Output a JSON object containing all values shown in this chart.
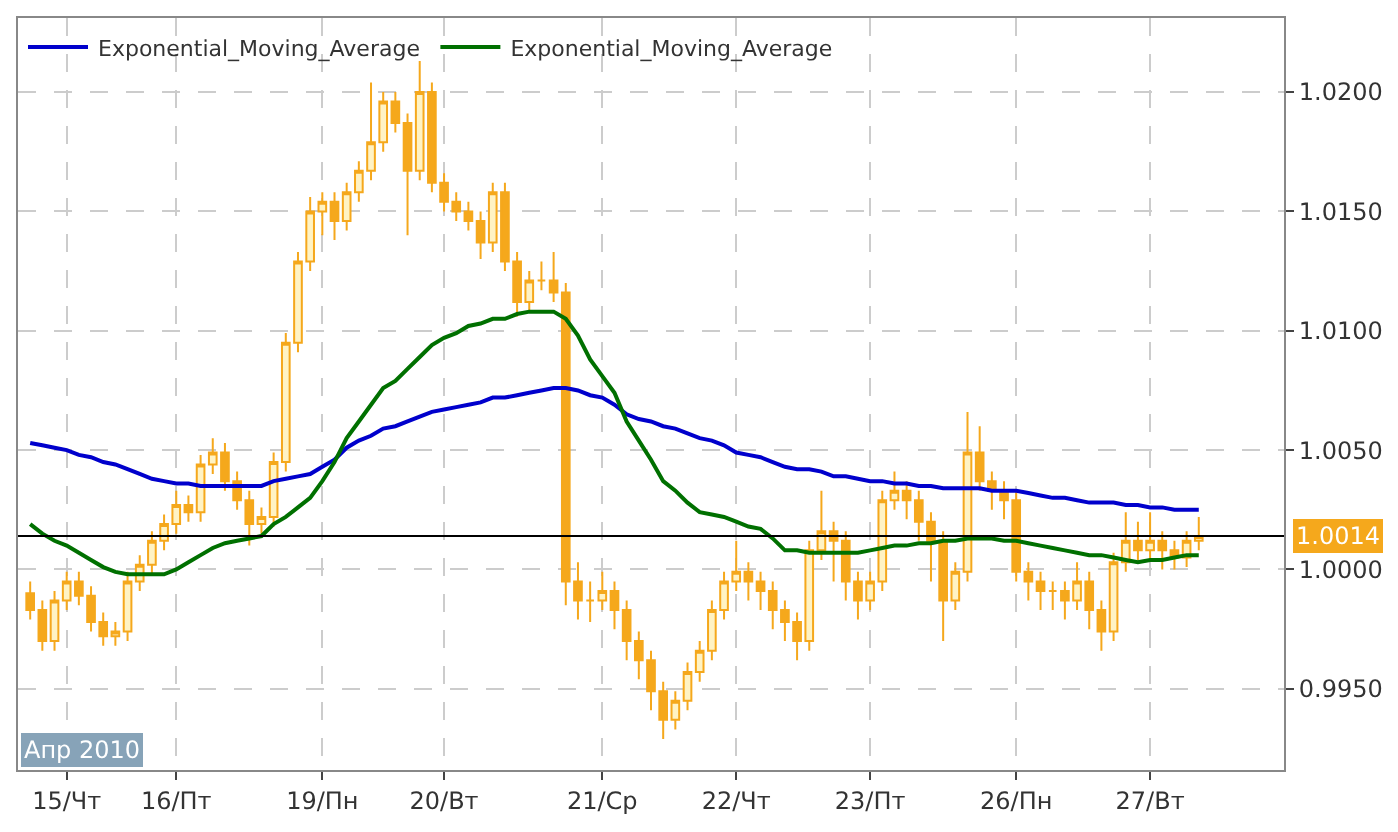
{
  "chart_data": {
    "type": "candlestick",
    "categories": [
      null,
      null,
      null,
      "15/Чт",
      null,
      null,
      null,
      null,
      null,
      null,
      null,
      null,
      "16/Пт",
      null,
      null,
      null,
      null,
      null,
      null,
      null,
      null,
      null,
      null,
      null,
      "19/Пн",
      null,
      null,
      null,
      null,
      null,
      null,
      null,
      null,
      null,
      "20/Вт",
      null,
      null,
      null,
      null,
      null,
      null,
      null,
      null,
      null,
      null,
      null,
      null,
      "21/Ср",
      null,
      null,
      null,
      null,
      null,
      null,
      null,
      null,
      null,
      null,
      "22/Чт",
      null,
      null,
      null,
      null,
      null,
      null,
      null,
      null,
      null,
      null,
      "23/Пт",
      null,
      null,
      null,
      null,
      null,
      null,
      null,
      null,
      null,
      null,
      null,
      "26/Пн",
      null,
      null,
      null,
      null,
      null,
      null,
      null,
      null,
      null,
      null,
      "27/Вт",
      null,
      null,
      null,
      null
    ],
    "series": [
      {
        "color": "#f5a81c",
        "ohlc": [
          [
            0.999,
            0.9995,
            0.9979,
            0.9983
          ],
          [
            0.9983,
            0.9987,
            0.9966,
            0.997
          ],
          [
            0.997,
            0.9991,
            0.9966,
            0.9987
          ],
          [
            0.9987,
            0.9999,
            0.9983,
            0.9995
          ],
          [
            0.9995,
            0.9999,
            0.9985,
            0.9989
          ],
          [
            0.9989,
            0.9993,
            0.9974,
            0.9978
          ],
          [
            0.9978,
            0.9982,
            0.9968,
            0.9972
          ],
          [
            0.9972,
            0.9978,
            0.9968,
            0.9974
          ],
          [
            0.9974,
            0.9999,
            0.997,
            0.9995
          ],
          [
            0.9995,
            1.0006,
            0.9991,
            1.0002
          ],
          [
            1.0002,
            1.0016,
            0.9998,
            1.0012
          ],
          [
            1.0012,
            1.0023,
            1.0008,
            1.0019
          ],
          [
            1.0019,
            1.0033,
            1.0015,
            1.0027
          ],
          [
            1.0027,
            1.0031,
            1.002,
            1.0024
          ],
          [
            1.0024,
            1.0048,
            1.002,
            1.0044
          ],
          [
            1.0044,
            1.0055,
            1.004,
            1.0049
          ],
          [
            1.0049,
            1.0053,
            1.0033,
            1.0037
          ],
          [
            1.0037,
            1.0041,
            1.0025,
            1.0029
          ],
          [
            1.0029,
            1.0033,
            1.001,
            1.0019
          ],
          [
            1.0019,
            1.0026,
            1.0015,
            1.0022
          ],
          [
            1.0022,
            1.0049,
            1.0018,
            1.0045
          ],
          [
            1.0045,
            1.0099,
            1.0041,
            1.0095
          ],
          [
            1.0095,
            1.0133,
            1.0091,
            1.0129
          ],
          [
            1.0129,
            1.0156,
            1.0125,
            1.015
          ],
          [
            1.015,
            1.0158,
            1.014,
            1.0154
          ],
          [
            1.0154,
            1.0158,
            1.0138,
            1.0146
          ],
          [
            1.0146,
            1.0162,
            1.0142,
            1.0158
          ],
          [
            1.0158,
            1.0171,
            1.0154,
            1.0167
          ],
          [
            1.0167,
            1.0204,
            1.0163,
            1.0179
          ],
          [
            1.0179,
            1.02,
            1.0175,
            1.0196
          ],
          [
            1.0196,
            1.02,
            1.0183,
            1.0187
          ],
          [
            1.0187,
            1.0191,
            1.014,
            1.0167
          ],
          [
            1.0167,
            1.0213,
            1.0163,
            1.02
          ],
          [
            1.02,
            1.0204,
            1.0158,
            1.0162
          ],
          [
            1.0162,
            1.0166,
            1.015,
            1.0154
          ],
          [
            1.0154,
            1.0158,
            1.0146,
            1.015
          ],
          [
            1.015,
            1.0154,
            1.0142,
            1.0146
          ],
          [
            1.0146,
            1.015,
            1.013,
            1.0137
          ],
          [
            1.0137,
            1.0162,
            1.0133,
            1.0158
          ],
          [
            1.0158,
            1.0162,
            1.0125,
            1.0129
          ],
          [
            1.0129,
            1.0133,
            1.0106,
            1.0112
          ],
          [
            1.0112,
            1.0125,
            1.0108,
            1.0121
          ],
          [
            1.0121,
            1.0129,
            1.0117,
            1.0121
          ],
          [
            1.0121,
            1.0133,
            1.0112,
            1.0116
          ],
          [
            1.0116,
            1.012,
            0.9985,
            0.9995
          ],
          [
            0.9995,
            1.0003,
            0.9979,
            0.9987
          ],
          [
            0.9987,
            0.9995,
            0.9978,
            0.9987
          ],
          [
            0.9987,
            0.9999,
            0.9983,
            0.9991
          ],
          [
            0.9991,
            0.9995,
            0.9975,
            0.9983
          ],
          [
            0.9983,
            0.9987,
            0.9962,
            0.997
          ],
          [
            0.997,
            0.9974,
            0.9954,
            0.9962
          ],
          [
            0.9962,
            0.9966,
            0.9941,
            0.9949
          ],
          [
            0.9949,
            0.9953,
            0.9929,
            0.9937
          ],
          [
            0.9937,
            0.9949,
            0.9933,
            0.9945
          ],
          [
            0.9945,
            0.9961,
            0.9941,
            0.9957
          ],
          [
            0.9957,
            0.997,
            0.9953,
            0.9966
          ],
          [
            0.9966,
            0.9987,
            0.9962,
            0.9983
          ],
          [
            0.9983,
            0.9999,
            0.9979,
            0.9995
          ],
          [
            0.9995,
            1.0012,
            0.9991,
            0.9999
          ],
          [
            0.9999,
            1.0003,
            0.9987,
            0.9995
          ],
          [
            0.9995,
            0.9999,
            0.9983,
            0.9991
          ],
          [
            0.9991,
            0.9995,
            0.9975,
            0.9983
          ],
          [
            0.9983,
            0.9987,
            0.997,
            0.9978
          ],
          [
            0.9978,
            0.9982,
            0.9962,
            0.997
          ],
          [
            0.997,
            1.0012,
            0.9966,
            1.0008
          ],
          [
            1.0008,
            1.0033,
            1.0004,
            1.0016
          ],
          [
            1.0016,
            1.002,
            0.9995,
            1.0012
          ],
          [
            1.0012,
            1.0016,
            0.9987,
            0.9995
          ],
          [
            0.9995,
            0.9999,
            0.9979,
            0.9987
          ],
          [
            0.9987,
            0.9999,
            0.9983,
            0.9995
          ],
          [
            0.9995,
            1.0033,
            0.9991,
            1.0029
          ],
          [
            1.0029,
            1.0041,
            1.0025,
            1.0033
          ],
          [
            1.0033,
            1.0037,
            1.0021,
            1.0029
          ],
          [
            1.0029,
            1.0033,
            1.0012,
            1.002
          ],
          [
            1.002,
            1.0024,
            0.9995,
            1.0012
          ],
          [
            1.0012,
            1.0016,
            0.997,
            0.9987
          ],
          [
            0.9987,
            1.0003,
            0.9983,
            0.9999
          ],
          [
            0.9999,
            1.0066,
            0.9995,
            1.0049
          ],
          [
            1.0049,
            1.006,
            1.0033,
            1.0037
          ],
          [
            1.0037,
            1.0041,
            1.0025,
            1.0033
          ],
          [
            1.0033,
            1.0037,
            1.0021,
            1.0029
          ],
          [
            1.0029,
            1.0033,
            0.9995,
            0.9999
          ],
          [
            0.9999,
            1.0003,
            0.9987,
            0.9995
          ],
          [
            0.9995,
            0.9999,
            0.9983,
            0.9991
          ],
          [
            0.9991,
            0.9995,
            0.9983,
            0.9991
          ],
          [
            0.9991,
            0.9995,
            0.9979,
            0.9987
          ],
          [
            0.9987,
            1.0003,
            0.9983,
            0.9995
          ],
          [
            0.9995,
            0.9999,
            0.9975,
            0.9983
          ],
          [
            0.9983,
            0.9987,
            0.9966,
            0.9974
          ],
          [
            0.9974,
            1.0007,
            0.997,
            1.0003
          ],
          [
            1.0003,
            1.0024,
            0.9999,
            1.0012
          ],
          [
            1.0012,
            1.002,
            1.0004,
            1.0008
          ],
          [
            1.0008,
            1.0024,
            1.0004,
            1.0012
          ],
          [
            1.0012,
            1.0016,
            1.0,
            1.0008
          ],
          [
            1.0008,
            1.0012,
            1.0,
            1.0005
          ],
          [
            1.0005,
            1.0016,
            1.0001,
            1.0012
          ],
          [
            1.0012,
            1.0022,
            1.0008,
            1.0014
          ]
        ]
      },
      {
        "type": "line",
        "name": "Exponential_Moving_Average",
        "color": "#0000cc",
        "values": [
          1.0053,
          1.0052,
          1.0051,
          1.005,
          1.0048,
          1.0047,
          1.0045,
          1.0044,
          1.0042,
          1.004,
          1.0038,
          1.0037,
          1.0036,
          1.0036,
          1.0035,
          1.0035,
          1.0035,
          1.0035,
          1.0035,
          1.0035,
          1.0037,
          1.0038,
          1.0039,
          1.004,
          1.0043,
          1.0046,
          1.0051,
          1.0054,
          1.0056,
          1.0059,
          1.006,
          1.0062,
          1.0064,
          1.0066,
          1.0067,
          1.0068,
          1.0069,
          1.007,
          1.0072,
          1.0072,
          1.0073,
          1.0074,
          1.0075,
          1.0076,
          1.0076,
          1.0075,
          1.0073,
          1.0072,
          1.0069,
          1.0065,
          1.0063,
          1.0062,
          1.006,
          1.0059,
          1.0057,
          1.0055,
          1.0054,
          1.0052,
          1.0049,
          1.0048,
          1.0047,
          1.0045,
          1.0043,
          1.0042,
          1.0042,
          1.0041,
          1.0039,
          1.0039,
          1.0038,
          1.0037,
          1.0037,
          1.0036,
          1.0036,
          1.0035,
          1.0035,
          1.0034,
          1.0034,
          1.0034,
          1.0034,
          1.0033,
          1.0033,
          1.0033,
          1.0032,
          1.0031,
          1.003,
          1.003,
          1.0029,
          1.0028,
          1.0028,
          1.0028,
          1.0027,
          1.0027,
          1.0026,
          1.0026,
          1.0025,
          1.0025,
          1.0025
        ]
      },
      {
        "type": "line",
        "name": "Exponential_Moving_Average",
        "color": "#007000",
        "values": [
          1.0019,
          1.0015,
          1.0012,
          1.001,
          1.0007,
          1.0004,
          1.0001,
          0.9999,
          0.9998,
          0.9998,
          0.9998,
          0.9998,
          1.0,
          1.0003,
          1.0006,
          1.0009,
          1.0011,
          1.0012,
          1.0013,
          1.0014,
          1.0019,
          1.0022,
          1.0026,
          1.003,
          1.0037,
          1.0045,
          1.0055,
          1.0062,
          1.0069,
          1.0076,
          1.0079,
          1.0084,
          1.0089,
          1.0094,
          1.0097,
          1.0099,
          1.0102,
          1.0103,
          1.0105,
          1.0105,
          1.0107,
          1.0108,
          1.0108,
          1.0108,
          1.0105,
          1.0098,
          1.0088,
          1.0081,
          1.0074,
          1.0062,
          1.0054,
          1.0046,
          1.0037,
          1.0033,
          1.0028,
          1.0024,
          1.0023,
          1.0022,
          1.002,
          1.0018,
          1.0017,
          1.0013,
          1.0008,
          1.0008,
          1.0007,
          1.0007,
          1.0007,
          1.0007,
          1.0007,
          1.0008,
          1.0009,
          1.001,
          1.001,
          1.0011,
          1.0011,
          1.0012,
          1.0012,
          1.0013,
          1.0013,
          1.0013,
          1.0012,
          1.0012,
          1.0011,
          1.001,
          1.0009,
          1.0008,
          1.0007,
          1.0006,
          1.0006,
          1.0005,
          1.0004,
          1.0003,
          1.0004,
          1.0004,
          1.0005,
          1.0006,
          1.0006
        ]
      }
    ],
    "ylim": [
      0.9916,
      1.0231
    ],
    "yticks": [
      {
        "value": 0.995,
        "label": "0.9950"
      },
      {
        "value": 1.0,
        "label": "1.0000"
      },
      {
        "value": 1.005,
        "label": "1.0050"
      },
      {
        "value": 1.01,
        "label": "1.0100"
      },
      {
        "value": 1.015,
        "label": "1.0150"
      },
      {
        "value": 1.02,
        "label": "1.0200"
      }
    ],
    "ref_lines": [
      {
        "axis": "y",
        "value": 1.0014,
        "label": "1.0014",
        "color": "#000000"
      }
    ],
    "annotations": [
      "Апр 2010"
    ],
    "grid": true,
    "legend": "top left"
  }
}
